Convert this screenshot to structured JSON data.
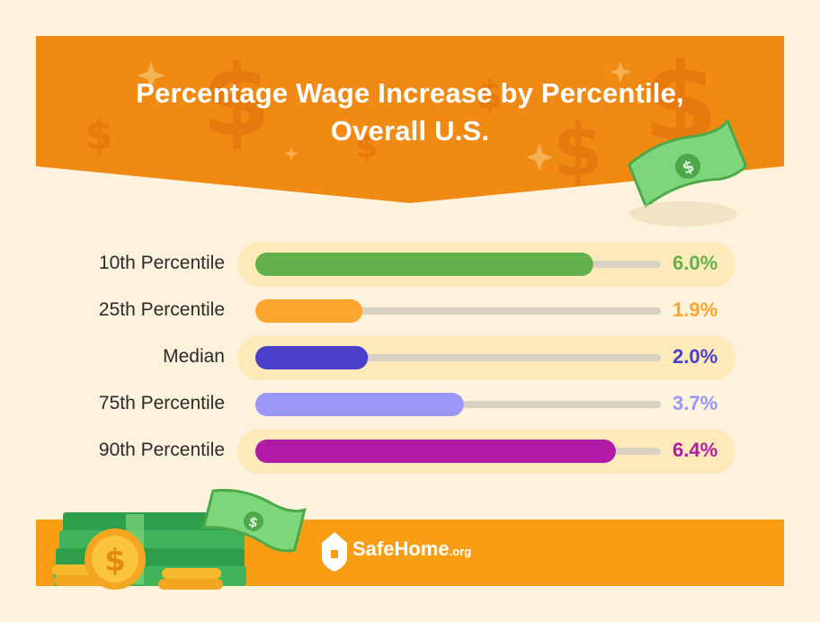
{
  "chart_data": {
    "type": "bar",
    "orientation": "horizontal",
    "title": "Percentage Wage Increase by Percentile,",
    "title_line2": "Overall U.S.",
    "categories": [
      "10th Percentile",
      "25th Percentile",
      "Median",
      "75th Percentile",
      "90th Percentile"
    ],
    "values": [
      6.0,
      1.9,
      2.0,
      3.7,
      6.4
    ],
    "value_labels": [
      "6.0%",
      "1.9%",
      "2.0%",
      "3.7%",
      "6.4%"
    ],
    "xlim": [
      0,
      7.2
    ],
    "colors": [
      "#63b14a",
      "#fba42e",
      "#4a3fc9",
      "#9a97f7",
      "#b01aa4"
    ],
    "track_color": "#d8d2c4",
    "highlight_color": "#fdeab8",
    "highlight_rows": [
      0,
      2,
      4
    ],
    "grid": false,
    "legend": "none"
  },
  "brand": {
    "name": "SafeHome",
    "suffix": ".org"
  },
  "decor": {
    "header_color": "#f18a12",
    "footer_color": "#f99d14",
    "icons": [
      "dollar-sign-icon",
      "sparkle-icon",
      "banknote-icon",
      "money-stack-icon",
      "gold-coin-icon",
      "house-shield-icon"
    ]
  }
}
